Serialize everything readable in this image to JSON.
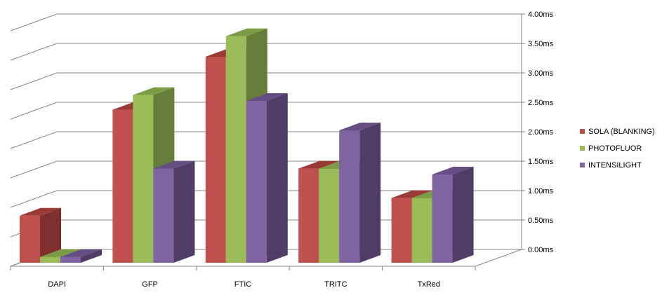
{
  "chart_data": {
    "type": "bar",
    "categories": [
      "DAPI",
      "GFP",
      "FTIC",
      "TRITC",
      "TxRed"
    ],
    "series": [
      {
        "name": "SOLA (BLANKING)",
        "values": [
          0.8,
          2.6,
          3.5,
          1.6,
          1.1
        ]
      },
      {
        "name": "PHOTOFLUOR",
        "values": [
          0.1,
          2.85,
          3.85,
          1.6,
          1.1
        ]
      },
      {
        "name": "INTENSILIGHT",
        "values": [
          0.1,
          1.6,
          2.75,
          2.25,
          1.5
        ]
      }
    ],
    "y_ticks": [
      "0.00ms",
      "0.50ms",
      "1.00ms",
      "1.50ms",
      "2.00ms",
      "2.50ms",
      "3.00ms",
      "3.50ms",
      "4.00ms"
    ],
    "ylim": [
      0,
      4
    ],
    "legend_position": "right",
    "grid": true,
    "colors": {
      "SOLA (BLANKING)": {
        "front": "#c0504d",
        "top": "#9a3a37",
        "side": "#7e2f2d"
      },
      "PHOTOFLUOR": {
        "front": "#9bbb59",
        "top": "#7d9a45",
        "side": "#657d38"
      },
      "INTENSILIGHT": {
        "front": "#8064a2",
        "top": "#654e83",
        "side": "#4f3d67"
      }
    }
  }
}
